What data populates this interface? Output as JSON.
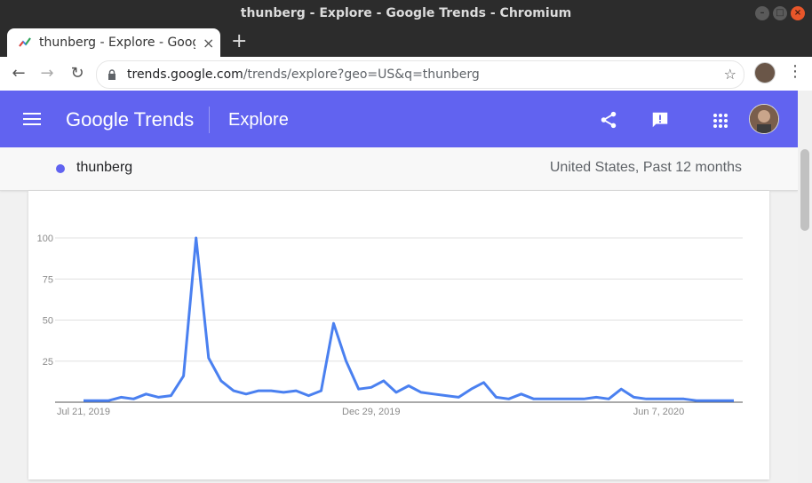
{
  "window": {
    "title": "thunberg - Explore - Google Trends - Chromium"
  },
  "tab": {
    "title": "thunberg - Explore - Goog",
    "close": "×",
    "new_tab": "+"
  },
  "toolbar": {
    "back": "←",
    "forward": "→",
    "reload": "↻",
    "url_host": "trends.google.com",
    "url_path": "/trends/explore?geo=US&q=thunberg",
    "star": "☆",
    "menu": "⋮"
  },
  "header": {
    "logo": "Google Trends",
    "page": "Explore"
  },
  "query": {
    "term": "thunberg",
    "scope": "United States, Past 12 months",
    "color": "#6163f0"
  },
  "colors": {
    "header_bg": "#6163f0",
    "line": "#4a80f0"
  },
  "chart_data": {
    "type": "line",
    "series": [
      {
        "values": [
          1,
          1,
          1,
          3,
          2,
          5,
          3,
          4,
          16,
          100,
          27,
          13,
          7,
          5,
          7,
          7,
          6,
          7,
          4,
          7,
          48,
          25,
          8,
          9,
          13,
          6,
          10,
          6,
          5,
          4,
          3,
          8,
          12,
          3,
          2,
          5,
          2,
          2,
          2,
          2,
          2,
          3,
          2,
          8,
          3,
          2,
          2,
          2,
          2,
          1,
          1,
          1,
          1
        ]
      }
    ],
    "x_tick_labels": [
      "Jul 21, 2019",
      "Dec 29, 2019",
      "Jun 7, 2020"
    ],
    "y_ticks": [
      25,
      50,
      75,
      100
    ],
    "ylim": [
      0,
      100
    ],
    "grid": true
  }
}
